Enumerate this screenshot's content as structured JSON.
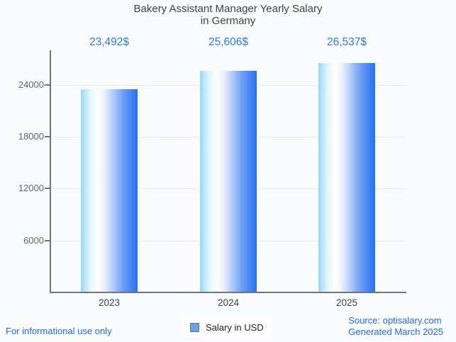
{
  "title": {
    "line1": "Bakery Assistant Manager Yearly Salary",
    "line2": "in Germany"
  },
  "legend": {
    "label": "Salary in USD"
  },
  "footer": {
    "left": "For informational use only",
    "source": "Source: optisalary.com",
    "generated": "Generated March 2025"
  },
  "colors": {
    "background": "#fafbfd",
    "title_text": "#3c4043",
    "value_label": "#2b7af2",
    "footer_text": "#2068ea",
    "axis_line": "#717477",
    "grid_line": "#e9ebf0",
    "ytick_text": "#5f6368",
    "xtick_text": "#3c4043",
    "legend_swatch": "#68a2e6",
    "legend_swatch_border": "#757575",
    "bar_gradient": [
      "#98d8f7",
      "#e2f5fd",
      "#ffffff",
      "#e9effc",
      "#b5cdf8",
      "#6f9ff5",
      "#2271f2"
    ],
    "bar_gradient_stops": [
      0,
      16,
      30,
      42,
      56,
      74,
      100
    ]
  },
  "chart_data": {
    "type": "bar",
    "title": "Bakery Assistant Manager Yearly Salary in Germany",
    "categories": [
      "2023",
      "2024",
      "2025"
    ],
    "values": [
      23492,
      25606,
      26537
    ],
    "value_labels": [
      "23,492$",
      "25,606$",
      "26,537$"
    ],
    "series_name": "Salary in USD",
    "xlabel": "",
    "ylabel": "",
    "ylim": [
      0,
      28000
    ],
    "yticks": [
      6000,
      12000,
      18000,
      24000
    ],
    "grid": true,
    "legend_position": "bottom"
  }
}
